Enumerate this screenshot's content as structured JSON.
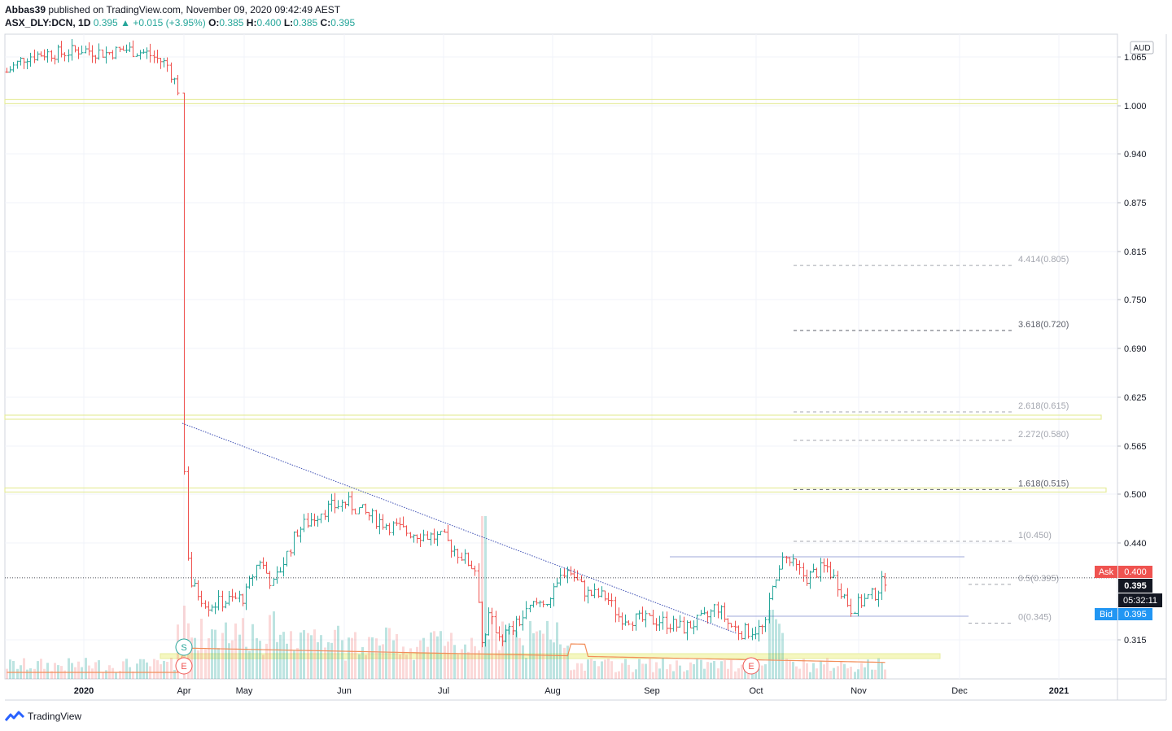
{
  "header": {
    "author": "Abbas39",
    "published_text": " published on TradingView.com, November 09, 2020 09:42:49 AEST",
    "symbol": "ASX_DLY:DCN, 1D",
    "last": "0.395",
    "change_arrow": "▲",
    "change": "+0.015 (+3.95%)",
    "o_label": "O:",
    "o_val": "0.385",
    "h_label": "H:",
    "h_val": "0.400",
    "l_label": "L:",
    "l_val": "0.385",
    "c_label": "C:",
    "c_val": "0.395"
  },
  "footer": {
    "brand": "TradingView",
    "logo_icon": "tradingview-logo-icon"
  },
  "colors": {
    "up": "#26a69a",
    "down": "#ef5350",
    "trendline": "#3f51b5",
    "ma": "#f28e5a",
    "zone": "#e6ec9c",
    "ask": "#ef5350",
    "bid": "#2196f3"
  },
  "chart_data": {
    "type": "candlestick",
    "currency": "AUD",
    "y_ticks": [
      "1.065",
      "1.000",
      "0.940",
      "0.875",
      "0.815",
      "0.750",
      "0.690",
      "0.625",
      "0.565",
      "0.500",
      "0.440",
      "0.315"
    ],
    "x_ticks": [
      "2020",
      "Apr",
      "May",
      "Jun",
      "Jul",
      "Aug",
      "Sep",
      "Oct",
      "Nov",
      "Dec",
      "2021"
    ],
    "fib_levels": [
      {
        "label": "4.414(0.805)",
        "value": 0.805
      },
      {
        "label": "3.618(0.720)",
        "value": 0.72
      },
      {
        "label": "2.618(0.615)",
        "value": 0.615
      },
      {
        "label": "2.272(0.580)",
        "value": 0.58
      },
      {
        "label": "1.618(0.515)",
        "value": 0.515
      },
      {
        "label": "1(0.450)",
        "value": 0.45
      },
      {
        "label": "0.5(0.395)",
        "value": 0.395
      },
      {
        "label": "0(0.345)",
        "value": 0.345
      }
    ],
    "price_tags": {
      "ask_label": "Ask",
      "ask_value": "0.400",
      "last_value": "0.395",
      "countdown": "05:32:11",
      "bid_label": "Bid",
      "bid_value": "0.395"
    },
    "markers": [
      "S",
      "E",
      "E"
    ],
    "horizontal_zones": [
      1.005,
      0.6,
      0.505
    ],
    "trendline": {
      "from_date": "2020-04-01",
      "from_price": 0.59,
      "to_date": "2020-09-25",
      "to_price": 0.323
    },
    "last_close": 0.395
  }
}
